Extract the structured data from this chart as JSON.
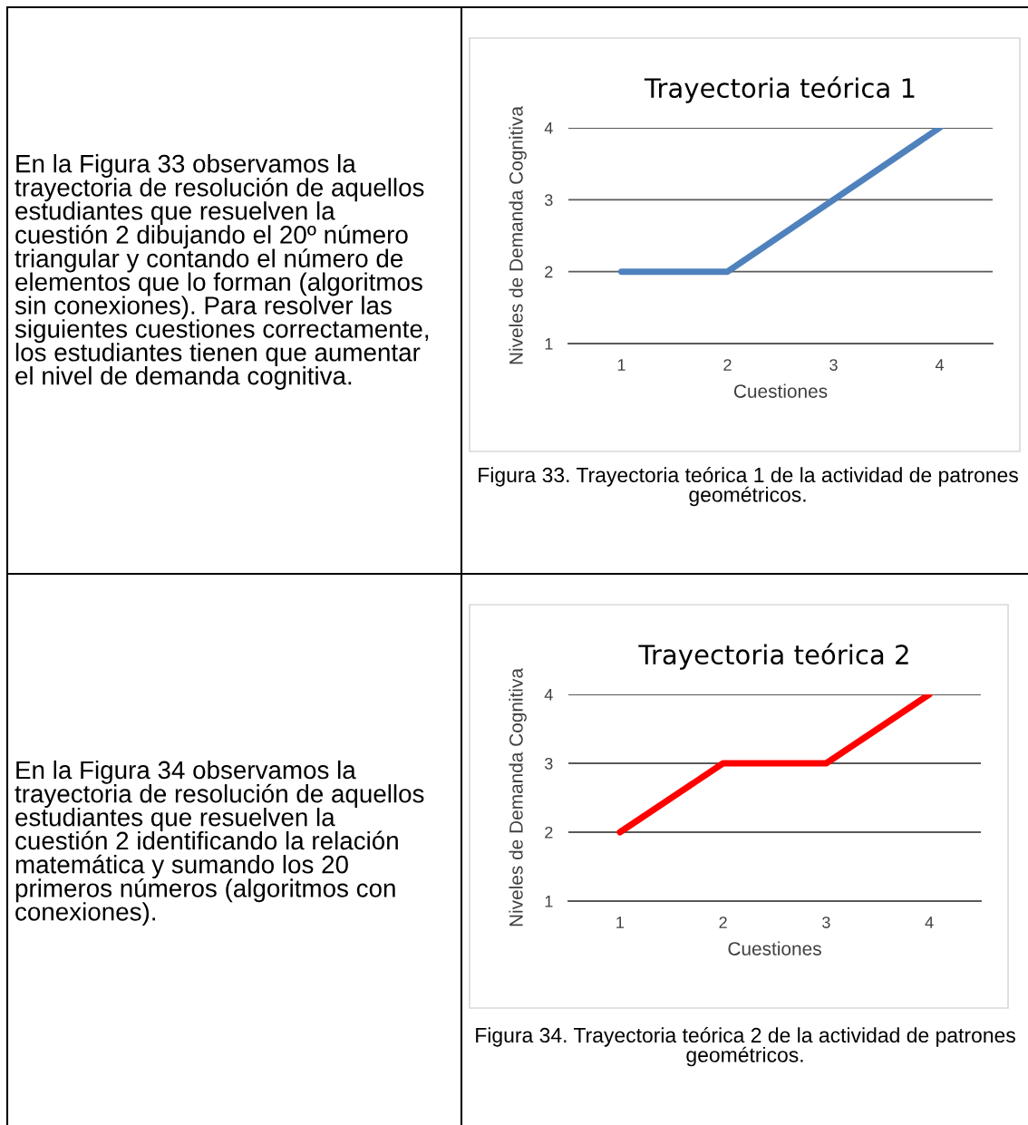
{
  "chart_data": [
    {
      "type": "other",
      "annotations": [
        "En la Figura 33 observamos la trayectoria de resolución de aquellos estudiantes que resuelven la cuestión 2 dibujando el 20º número triangular y contando el número de elementos que lo forman (algoritmos sin conexiones). Para resolver las siguientes cuestiones correctamente, los estudiantes tienen que aumentar el nivel de demanda cognitiva."
      ]
    },
    {
      "type": "line",
      "title": "Trayectoria teórica 1",
      "xlabel": "Cuestiones",
      "ylabel": "Niveles de Demanda Cognitiva",
      "categories": [
        "1",
        "2",
        "3",
        "4"
      ],
      "series": [
        {
          "color": "#4f81bd",
          "values": [
            2,
            2,
            3,
            4
          ]
        }
      ],
      "ylim": [
        1,
        4
      ],
      "yticks": [
        1,
        2,
        3,
        4
      ],
      "grid": "y",
      "annotations": [
        "Figura 33. Trayectoria teórica 1 de la actividad de patrones geométricos."
      ]
    },
    {
      "type": "other",
      "annotations": [
        "En la Figura 34 observamos la trayectoria de resolución de aquellos estudiantes que resuelven la cuestión 2 identificando la relación matemática y sumando los 20 primeros números (algoritmos con conexiones)."
      ]
    },
    {
      "type": "line",
      "title": "Trayectoria teórica 2",
      "xlabel": "Cuestiones",
      "ylabel": "Niveles de Demanda Cognitiva",
      "categories": [
        "1",
        "2",
        "3",
        "4"
      ],
      "series": [
        {
          "color": "#ff0000",
          "values": [
            2,
            3,
            3,
            4
          ]
        }
      ],
      "ylim": [
        1,
        4
      ],
      "yticks": [
        1,
        2,
        3,
        4
      ],
      "grid": "y",
      "annotations": [
        "Figura 34. Trayectoria teórica 2 de la actividad de patrones geométricos."
      ]
    }
  ]
}
